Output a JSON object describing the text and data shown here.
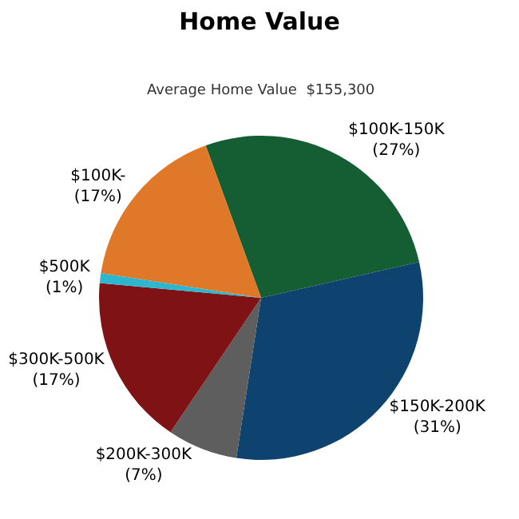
{
  "chart_data": {
    "type": "pie",
    "title": "Home Value",
    "subtitle": "Average Home Value  $155,300",
    "categories": [
      "$100K-150K",
      "$150K-200K",
      "$200K-300K",
      "$300K-500K",
      "$500K",
      "$100K-"
    ],
    "values": [
      27,
      31,
      7,
      17,
      1,
      17
    ],
    "value_labels": [
      "(27%)",
      "(31%)",
      "(7%)",
      "(17%)",
      "(1%)",
      "(17%)"
    ],
    "colors": [
      "#155e33",
      "#0e426f",
      "#5e5e5e",
      "#7e1214",
      "#2cb7cf",
      "#e0782a"
    ],
    "legend": false
  }
}
